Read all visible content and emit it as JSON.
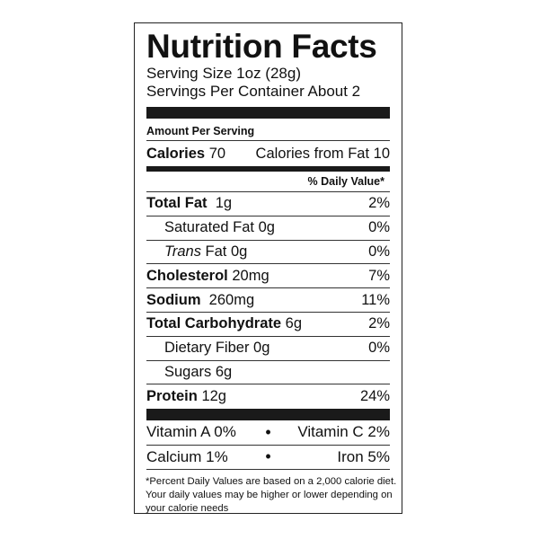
{
  "title": "Nutrition Facts",
  "serving_size": "Serving Size 1oz (28g)",
  "servings_per_container": "Servings Per Container About 2",
  "amount_per_serving": "Amount Per Serving",
  "calories": {
    "label": "Calories",
    "value": "70",
    "from_fat": "Calories from Fat 10"
  },
  "daily_value_header": "% Daily Value*",
  "nutrients": [
    {
      "label": "Total Fat",
      "amount": "1g",
      "dv": "2%"
    },
    {
      "label": "Saturated Fat",
      "amount": "0g",
      "dv": "0%"
    },
    {
      "label_italic": "Trans",
      "label": "Fat",
      "amount": "0g",
      "dv": "0%"
    },
    {
      "label": "Cholesterol",
      "amount": "20mg",
      "dv": "7%"
    },
    {
      "label": "Sodium",
      "amount": "260mg",
      "dv": "11%"
    },
    {
      "label": "Total Carbohydrate",
      "amount": "6g",
      "dv": "2%"
    },
    {
      "label": "Dietary Fiber",
      "amount": "0g",
      "dv": "0%"
    },
    {
      "label": "Sugars",
      "amount": "6g",
      "dv": ""
    },
    {
      "label": "Protein",
      "amount": "12g",
      "dv": "24%"
    }
  ],
  "vitamins": [
    {
      "left": "Vitamin A 0%",
      "right": "Vitamin C 2%"
    },
    {
      "left": "Calcium 1%",
      "right": "Iron 5%"
    }
  ],
  "separator": "•",
  "footnote": "*Percent Daily Values are based on a 2,000 calorie diet. Your daily values may be higher or lower depending on your calorie needs"
}
